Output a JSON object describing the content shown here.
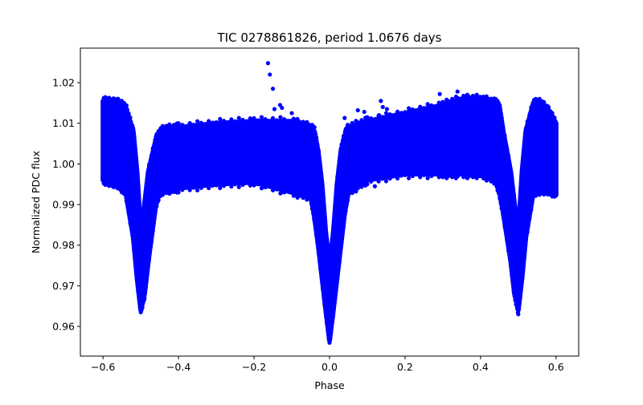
{
  "chart_data": {
    "type": "scatter",
    "title": "TIC 0278861826, period 1.0676 days",
    "xlabel": "Phase",
    "ylabel": "Normalized PDC flux",
    "xlim": [
      -0.66,
      0.66
    ],
    "ylim": [
      0.9527,
      1.0285
    ],
    "xticks": [
      -0.6,
      -0.4,
      -0.2,
      0.0,
      0.2,
      0.4,
      0.6
    ],
    "xtick_labels": [
      "−0.6",
      "−0.4",
      "−0.2",
      "0.0",
      "0.2",
      "0.4",
      "0.6"
    ],
    "yticks": [
      0.96,
      0.97,
      0.98,
      0.99,
      1.0,
      1.01,
      1.02
    ],
    "ytick_labels": [
      "0.96",
      "0.97",
      "0.98",
      "0.99",
      "1.00",
      "1.01",
      "1.02"
    ],
    "grid": false,
    "series": [
      {
        "color": "#0000ff",
        "envelope": {
          "phase": [
            -0.6,
            -0.58,
            -0.56,
            -0.54,
            -0.52,
            -0.51,
            -0.5,
            -0.49,
            -0.48,
            -0.46,
            -0.45,
            -0.44,
            -0.4,
            -0.3,
            -0.2,
            -0.1,
            -0.05,
            -0.04,
            -0.03,
            -0.02,
            -0.01,
            0.0,
            0.01,
            0.02,
            0.03,
            0.04,
            0.05,
            0.1,
            0.2,
            0.3,
            0.35,
            0.4,
            0.44,
            0.45,
            0.46,
            0.48,
            0.49,
            0.5,
            0.51,
            0.52,
            0.54,
            0.56,
            0.58,
            0.6
          ],
          "upper": [
            1.0155,
            1.0152,
            1.015,
            1.014,
            1.008,
            0.998,
            0.983,
            0.99,
            0.998,
            1.006,
            1.0075,
            1.0085,
            1.009,
            1.01,
            1.0105,
            1.0105,
            1.009,
            1.008,
            1.003,
            0.995,
            0.983,
            0.975,
            0.983,
            0.995,
            1.003,
            1.007,
            1.009,
            1.0105,
            1.0125,
            1.0145,
            1.016,
            1.016,
            1.015,
            1.014,
            1.008,
            0.998,
            0.99,
            0.983,
            0.998,
            1.008,
            1.015,
            1.015,
            1.013,
            1.01
          ],
          "lower": [
            0.996,
            0.9955,
            0.995,
            0.993,
            0.982,
            0.972,
            0.964,
            0.968,
            0.976,
            0.99,
            0.993,
            0.9935,
            0.994,
            0.995,
            0.9955,
            0.993,
            0.992,
            0.987,
            0.98,
            0.972,
            0.964,
            0.9565,
            0.964,
            0.972,
            0.98,
            0.988,
            0.993,
            0.996,
            0.9975,
            0.9975,
            0.9975,
            0.9975,
            0.996,
            0.993,
            0.988,
            0.976,
            0.968,
            0.964,
            0.972,
            0.982,
            0.993,
            0.9935,
            0.9935,
            0.9925
          ]
        },
        "outliers": [
          [
            -0.163,
            1.0248
          ],
          [
            -0.158,
            1.022
          ],
          [
            -0.15,
            1.0185
          ],
          [
            -0.146,
            1.0135
          ],
          [
            -0.131,
            1.0145
          ],
          [
            -0.126,
            1.0138
          ],
          [
            -0.1,
            1.0125
          ],
          [
            0.04,
            1.0113
          ],
          [
            0.075,
            1.0132
          ],
          [
            0.092,
            1.0128
          ],
          [
            0.131,
            1.012
          ],
          [
            0.136,
            1.0155
          ],
          [
            0.141,
            1.014
          ],
          [
            0.152,
            1.0135
          ],
          [
            0.292,
            1.0172
          ],
          [
            0.339,
            1.0178
          ],
          [
            0.6,
            1.0093
          ],
          [
            0.6,
            0.9922
          ],
          [
            -0.42,
            0.993
          ],
          [
            0.12,
            0.9945
          ]
        ]
      }
    ]
  }
}
